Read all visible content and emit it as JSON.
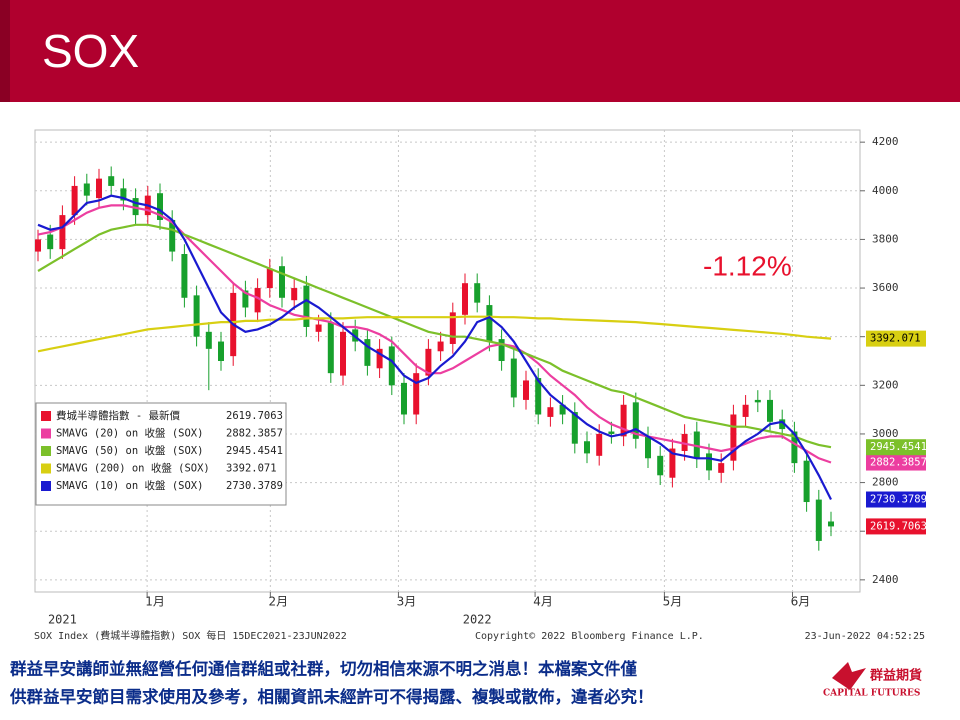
{
  "title": "SOX",
  "chart_data": {
    "type": "candlestick",
    "annotation": "-1.12%",
    "ylim": [
      2350,
      4250
    ],
    "yticks": [
      2400,
      2600,
      2800,
      3000,
      3200,
      3400,
      3600,
      3800,
      4000,
      4200
    ],
    "xticks": [
      {
        "value": 9.6,
        "label": "1月"
      },
      {
        "value": 19.7,
        "label": "2月"
      },
      {
        "value": 30.2,
        "label": "3月"
      },
      {
        "value": 41.4,
        "label": "4月"
      },
      {
        "value": 52,
        "label": "5月"
      },
      {
        "value": 62.5,
        "label": "6月"
      }
    ],
    "year_labels": [
      {
        "value": 2,
        "label": "2021"
      },
      {
        "value": 36,
        "label": "2022"
      }
    ],
    "grid": true,
    "up_color": "#e8112d",
    "down_color": "#17a02c",
    "series": [
      {
        "name": "費城半導體指數 - 最新價",
        "color": "#e8112d",
        "open": [
          3750,
          3820,
          3760,
          3900,
          4030,
          3970,
          4060,
          4010,
          3970,
          3900,
          3990,
          3880,
          3740,
          3570,
          3420,
          3380,
          3320,
          3590,
          3500,
          3600,
          3690,
          3550,
          3610,
          3420,
          3460,
          3240,
          3430,
          3390,
          3270,
          3360,
          3210,
          3080,
          3240,
          3340,
          3370,
          3490,
          3620,
          3530,
          3390,
          3310,
          3140,
          3230,
          3070,
          3120,
          3090,
          2970,
          2910,
          3010,
          2990,
          3130,
          2990,
          2910,
          2820,
          2930,
          3010,
          2920,
          2840,
          2890,
          3070,
          3140,
          3140,
          3060,
          3010,
          2890,
          2730,
          2640
        ],
        "high": [
          3840,
          3860,
          3940,
          4060,
          4070,
          4090,
          4100,
          4050,
          4010,
          4020,
          4030,
          3920,
          3780,
          3610,
          3460,
          3420,
          3620,
          3630,
          3640,
          3720,
          3730,
          3640,
          3650,
          3490,
          3500,
          3460,
          3470,
          3430,
          3390,
          3400,
          3250,
          3290,
          3390,
          3420,
          3540,
          3660,
          3660,
          3570,
          3430,
          3350,
          3260,
          3270,
          3150,
          3160,
          3130,
          3010,
          3040,
          3050,
          3160,
          3170,
          3030,
          2950,
          2980,
          3040,
          3050,
          2960,
          2920,
          3120,
          3160,
          3180,
          3180,
          3100,
          3050,
          2930,
          2770,
          2680
        ],
        "low": [
          3710,
          3720,
          3720,
          3860,
          3940,
          3930,
          3980,
          3920,
          3860,
          3860,
          3840,
          3710,
          3520,
          3360,
          3180,
          3260,
          3280,
          3480,
          3460,
          3560,
          3520,
          3510,
          3400,
          3380,
          3210,
          3200,
          3340,
          3240,
          3230,
          3160,
          3040,
          3040,
          3200,
          3300,
          3330,
          3450,
          3500,
          3340,
          3260,
          3110,
          3100,
          3040,
          3030,
          3040,
          2920,
          2880,
          2870,
          2960,
          2950,
          2940,
          2860,
          2790,
          2780,
          2890,
          2860,
          2810,
          2800,
          2850,
          3030,
          3090,
          3010,
          2980,
          2840,
          2680,
          2520,
          2580
        ],
        "close": [
          3800,
          3760,
          3900,
          4020,
          3980,
          4050,
          4020,
          3960,
          3900,
          3980,
          3880,
          3750,
          3560,
          3400,
          3350,
          3300,
          3580,
          3520,
          3600,
          3680,
          3560,
          3600,
          3440,
          3450,
          3250,
          3420,
          3380,
          3280,
          3350,
          3200,
          3080,
          3250,
          3350,
          3380,
          3500,
          3620,
          3540,
          3380,
          3300,
          3150,
          3220,
          3080,
          3110,
          3080,
          2960,
          2920,
          3000,
          3000,
          3120,
          2980,
          2900,
          2830,
          2940,
          3000,
          2900,
          2850,
          2880,
          3080,
          3120,
          3130,
          3050,
          3020,
          2880,
          2720,
          2560,
          2619.7063
        ]
      },
      {
        "name": "SMAVG (20)  on 收盤 (SOX)",
        "color": "#ec3ea0",
        "values": [
          3820,
          3830,
          3850,
          3880,
          3910,
          3930,
          3940,
          3940,
          3930,
          3920,
          3900,
          3870,
          3820,
          3770,
          3720,
          3670,
          3620,
          3580,
          3560,
          3530,
          3510,
          3490,
          3480,
          3470,
          3460,
          3440,
          3440,
          3430,
          3410,
          3380,
          3330,
          3280,
          3250,
          3250,
          3270,
          3300,
          3330,
          3360,
          3370,
          3360,
          3330,
          3290,
          3240,
          3200,
          3160,
          3110,
          3070,
          3040,
          3020,
          3000,
          2990,
          2980,
          2970,
          2960,
          2950,
          2940,
          2930,
          2940,
          2960,
          2980,
          2990,
          2990,
          2960,
          2930,
          2900,
          2882.3857
        ]
      },
      {
        "name": "SMAVG (50)  on 收盤 (SOX)",
        "color": "#7cc02a",
        "values": [
          3670,
          3700,
          3730,
          3760,
          3790,
          3820,
          3840,
          3850,
          3860,
          3860,
          3850,
          3840,
          3820,
          3800,
          3780,
          3760,
          3740,
          3720,
          3700,
          3680,
          3660,
          3640,
          3620,
          3600,
          3580,
          3560,
          3540,
          3520,
          3500,
          3480,
          3460,
          3440,
          3420,
          3410,
          3400,
          3400,
          3390,
          3380,
          3370,
          3350,
          3330,
          3310,
          3290,
          3260,
          3240,
          3220,
          3200,
          3180,
          3170,
          3150,
          3130,
          3110,
          3090,
          3070,
          3060,
          3050,
          3040,
          3030,
          3030,
          3020,
          3010,
          3000,
          2990,
          2970,
          2955,
          2945.4541
        ]
      },
      {
        "name": "SMAVG (200)  on 收盤 (SOX)",
        "color": "#d8cf12",
        "values": [
          3340,
          3350,
          3360,
          3370,
          3380,
          3390,
          3400,
          3410,
          3420,
          3430,
          3435,
          3440,
          3445,
          3450,
          3455,
          3460,
          3460,
          3465,
          3465,
          3470,
          3470,
          3470,
          3475,
          3475,
          3475,
          3475,
          3478,
          3480,
          3480,
          3480,
          3480,
          3480,
          3480,
          3480,
          3480,
          3482,
          3482,
          3482,
          3480,
          3480,
          3478,
          3475,
          3475,
          3472,
          3470,
          3468,
          3466,
          3464,
          3462,
          3460,
          3456,
          3452,
          3448,
          3444,
          3440,
          3436,
          3432,
          3428,
          3424,
          3420,
          3416,
          3412,
          3406,
          3400,
          3396,
          3392.071
        ]
      },
      {
        "name": "SMAVG (10)  on 收盤 (SOX)",
        "color": "#1a1ad0",
        "values": [
          3860,
          3840,
          3850,
          3900,
          3950,
          3960,
          3980,
          3970,
          3950,
          3940,
          3920,
          3880,
          3800,
          3700,
          3600,
          3500,
          3450,
          3420,
          3430,
          3450,
          3480,
          3520,
          3550,
          3520,
          3480,
          3440,
          3400,
          3360,
          3330,
          3300,
          3240,
          3210,
          3230,
          3280,
          3320,
          3380,
          3460,
          3480,
          3440,
          3380,
          3300,
          3220,
          3160,
          3120,
          3080,
          3040,
          3010,
          2990,
          3000,
          3020,
          2990,
          2960,
          2920,
          2910,
          2900,
          2900,
          2890,
          2930,
          2970,
          3000,
          3040,
          3050,
          3000,
          2920,
          2830,
          2730.3789
        ]
      }
    ],
    "footer_left": "SOX Index (費城半導體指數) SOX  每日 15DEC2021-23JUN2022",
    "footer_center": "Copyright© 2022 Bloomberg Finance L.P.",
    "footer_right": "23-Jun-2022 04:52:25"
  },
  "disclaimer": [
    "群益早安講師並無經營任何通信群組或社群，切勿相信來源不明之消息！本檔案文件僅",
    "供群益早安節目需求使用及參考，相關資訊未經許可不得揭露、複製或散佈，違者必究！"
  ],
  "logo": {
    "name": "群益期貨",
    "sub": "CAPITAL FUTURES"
  }
}
